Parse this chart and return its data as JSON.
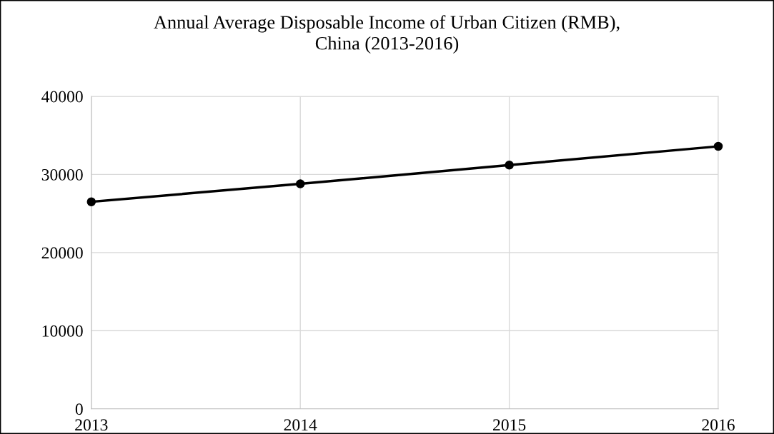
{
  "chart_data": {
    "type": "line",
    "title": "Annual Average Disposable Income of Urban Citizen (RMB),\nChina (2013-2016)",
    "x": [
      2013,
      2014,
      2015,
      2016
    ],
    "series": [
      {
        "color": "#000000",
        "values": [
          26500,
          28800,
          31200,
          33600
        ]
      }
    ],
    "xlim": [
      2013,
      2016
    ],
    "xticks": [
      2013,
      2014,
      2015,
      2016
    ],
    "ylim": [
      0,
      40000
    ],
    "yticks": [
      0,
      10000,
      20000,
      30000,
      40000
    ],
    "grid": true,
    "marker": "circle",
    "line_style": "solid",
    "legend": false
  }
}
